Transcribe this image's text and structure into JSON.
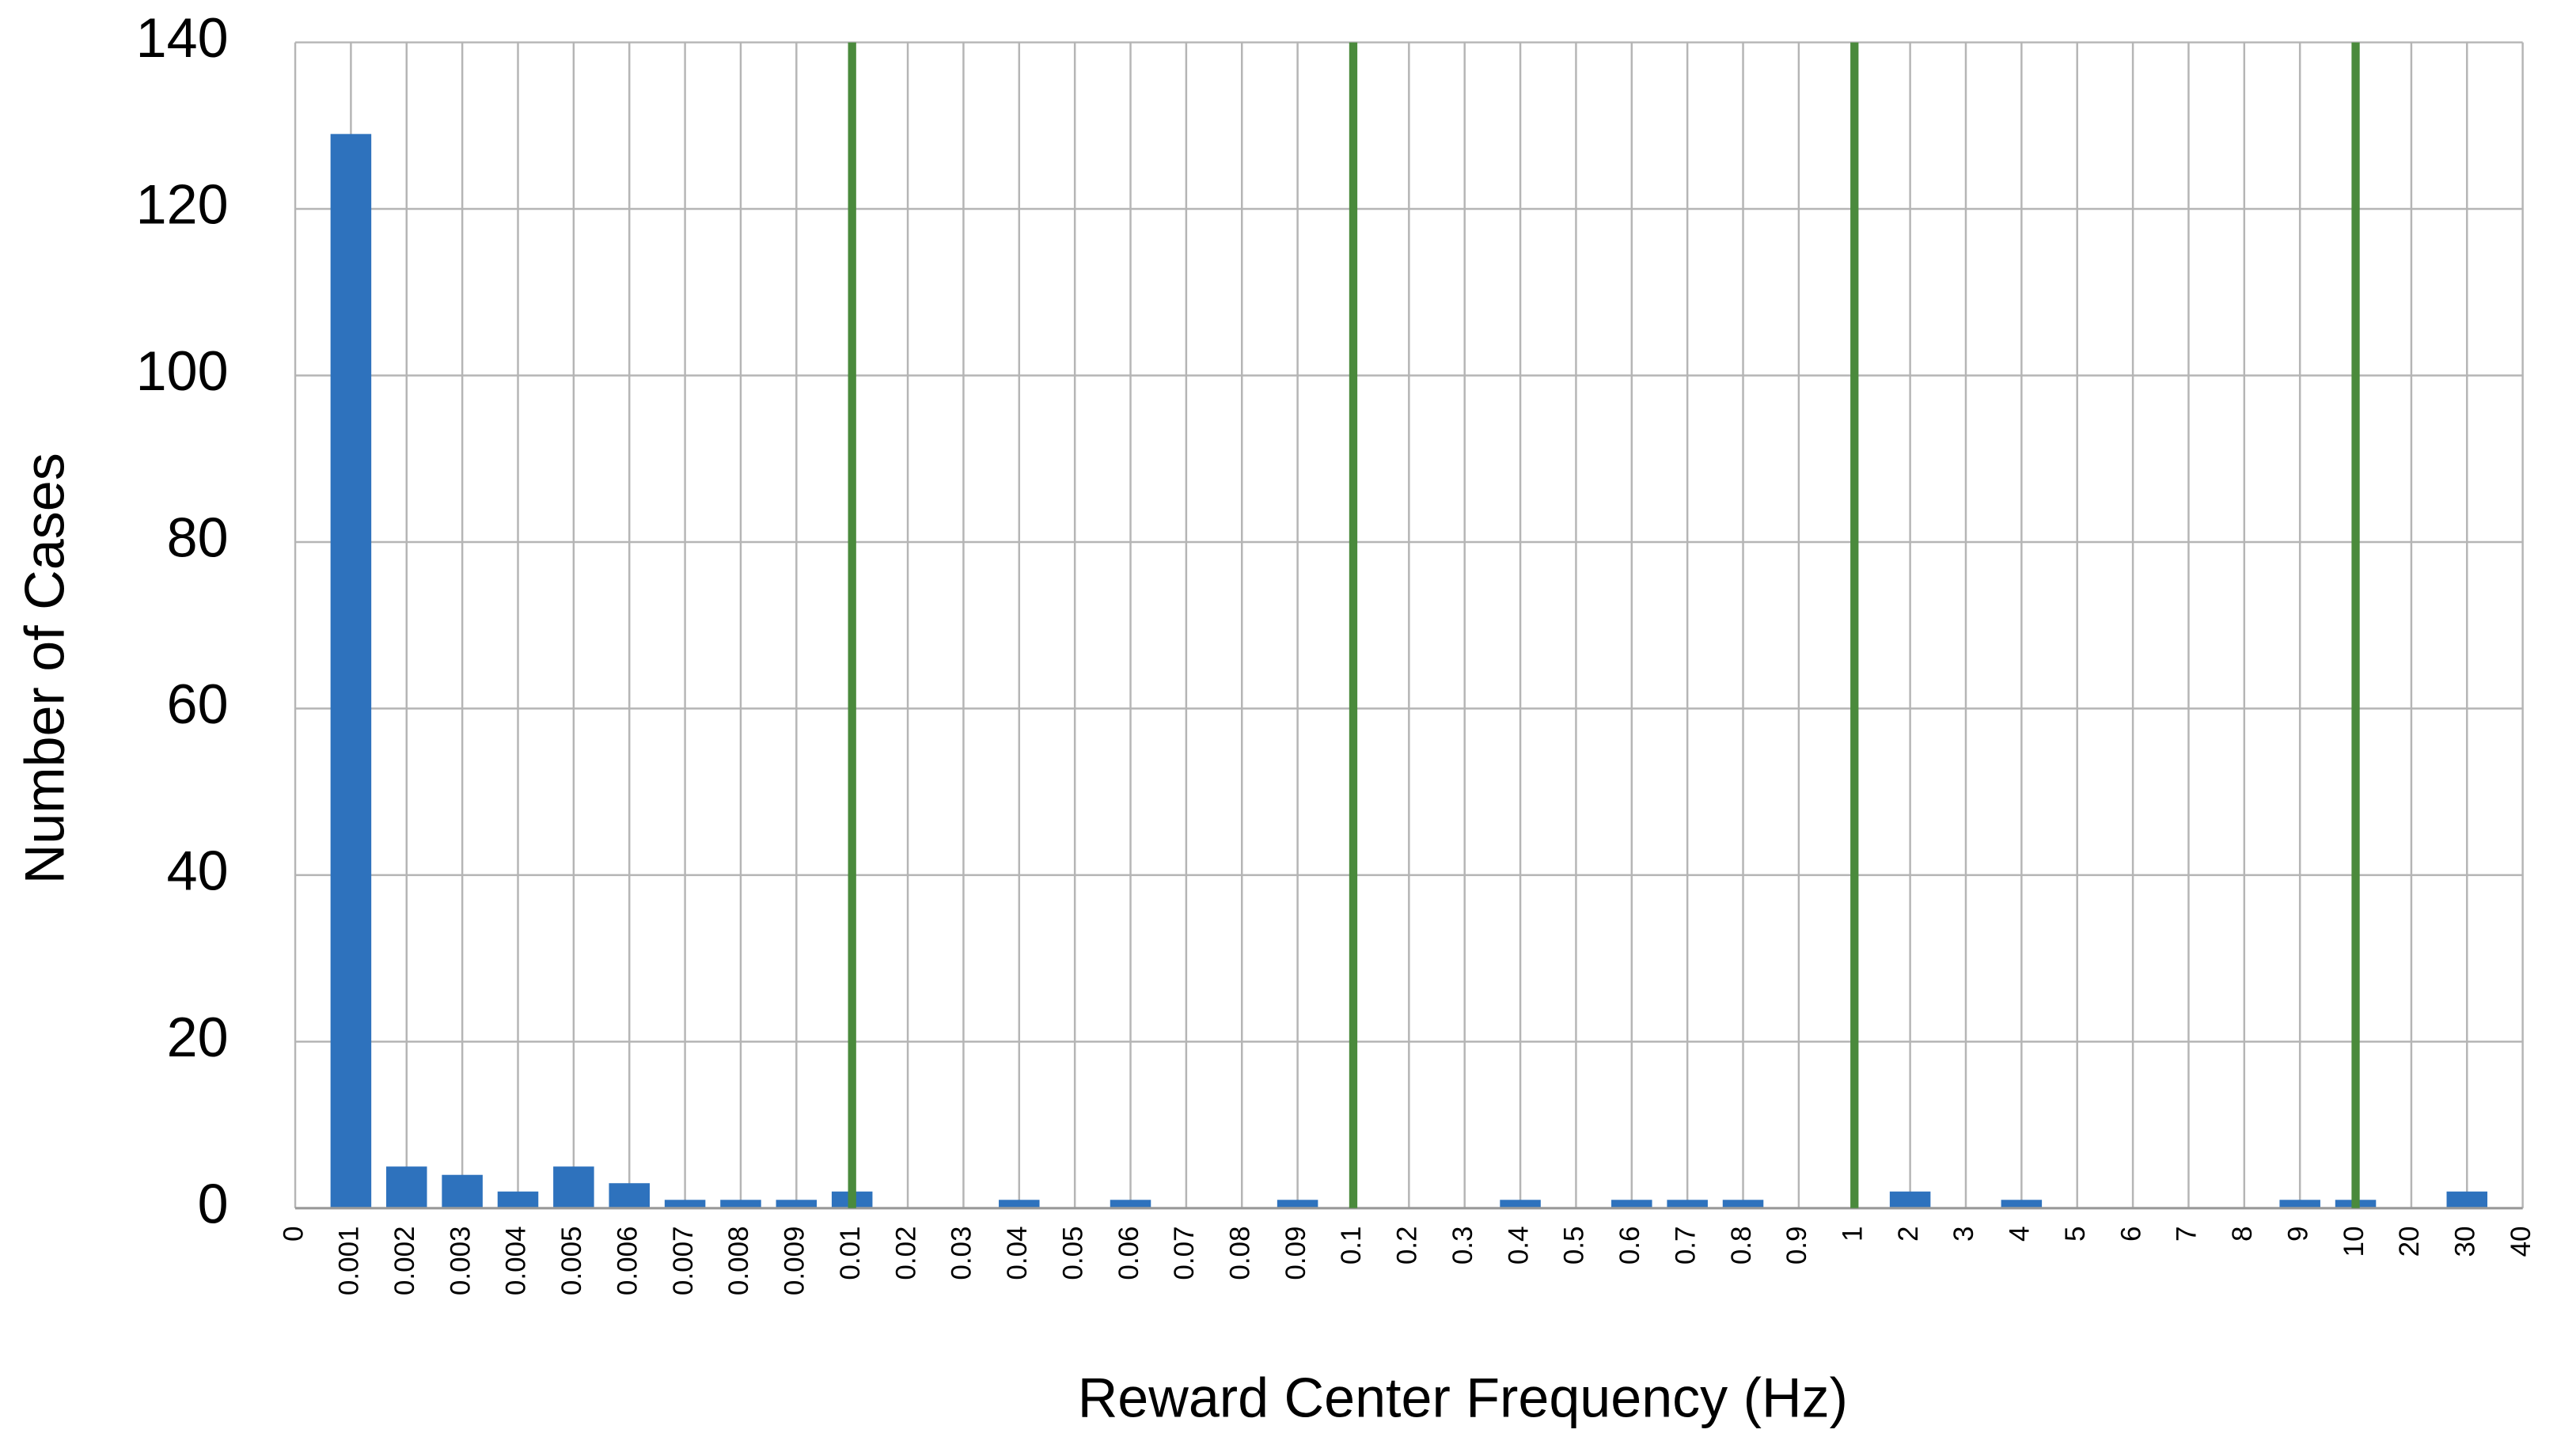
{
  "chart_data": {
    "type": "bar",
    "xlabel": "Reward Center Frequency (Hz)",
    "ylabel": "Number of Cases",
    "categories": [
      "0",
      "0.001",
      "0.002",
      "0.003",
      "0.004",
      "0.005",
      "0.006",
      "0.007",
      "0.008",
      "0.009",
      "0.01",
      "0.02",
      "0.03",
      "0.04",
      "0.05",
      "0.06",
      "0.07",
      "0.08",
      "0.09",
      "0.1",
      "0.2",
      "0.3",
      "0.4",
      "0.5",
      "0.6",
      "0.7",
      "0.8",
      "0.9",
      "1",
      "2",
      "3",
      "4",
      "5",
      "6",
      "7",
      "8",
      "9",
      "10",
      "20",
      "30",
      "40"
    ],
    "values": [
      0,
      129,
      5,
      4,
      2,
      5,
      3,
      1,
      1,
      1,
      2,
      0,
      0,
      1,
      0,
      1,
      0,
      0,
      1,
      0,
      0,
      0,
      1,
      0,
      1,
      1,
      1,
      0,
      0,
      2,
      0,
      1,
      0,
      0,
      0,
      0,
      1,
      1,
      0,
      2,
      0
    ],
    "color": "#2e72bd",
    "reference_lines": [
      "0.01",
      "0.1",
      "1",
      "10"
    ],
    "reference_color": "#4a8a3c",
    "ylim": [
      0,
      140
    ],
    "yticks": [
      0,
      20,
      40,
      60,
      80,
      100,
      120,
      140
    ],
    "grid": true
  }
}
